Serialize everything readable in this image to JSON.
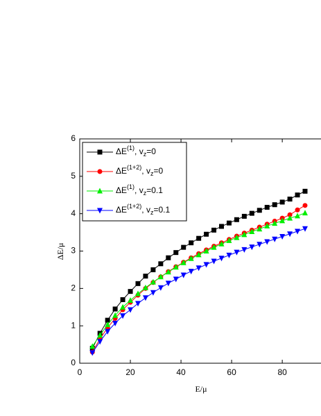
{
  "chart_data": {
    "type": "line",
    "x_label": "E/μ",
    "y_label": "ΔE/μ",
    "x": [
      5,
      8,
      11,
      14,
      17,
      20,
      23,
      26,
      29,
      32,
      35,
      38,
      41,
      44,
      47,
      50,
      53,
      56,
      59,
      62,
      65,
      68,
      71,
      74,
      77,
      80,
      83,
      86,
      89
    ],
    "series": [
      {
        "name": "ΔE(1), vz=0",
        "color": "#000000",
        "marker": "square",
        "values": [
          0.4,
          0.8,
          1.15,
          1.45,
          1.7,
          1.92,
          2.13,
          2.33,
          2.5,
          2.66,
          2.82,
          2.96,
          3.1,
          3.22,
          3.34,
          3.45,
          3.56,
          3.66,
          3.75,
          3.84,
          3.93,
          4.01,
          4.09,
          4.17,
          4.24,
          4.31,
          4.39,
          4.5,
          4.6
        ]
      },
      {
        "name": "ΔE(1+2), vz=0",
        "color": "#ff0000",
        "marker": "circle",
        "values": [
          0.3,
          0.65,
          0.95,
          1.2,
          1.43,
          1.63,
          1.82,
          2.0,
          2.16,
          2.31,
          2.45,
          2.58,
          2.7,
          2.82,
          2.93,
          3.03,
          3.13,
          3.22,
          3.31,
          3.4,
          3.48,
          3.56,
          3.64,
          3.72,
          3.8,
          3.88,
          3.97,
          4.1,
          4.22
        ]
      },
      {
        "name": "ΔE(1), vz=0.1",
        "color": "#00ee00",
        "marker": "triangle-up",
        "values": [
          0.45,
          0.75,
          1.03,
          1.28,
          1.5,
          1.68,
          1.86,
          2.02,
          2.17,
          2.31,
          2.44,
          2.57,
          2.69,
          2.8,
          2.9,
          3.0,
          3.1,
          3.19,
          3.28,
          3.36,
          3.44,
          3.52,
          3.59,
          3.67,
          3.74,
          3.81,
          3.88,
          3.94,
          4.02
        ]
      },
      {
        "name": "ΔE(1+2), vz=0.1",
        "color": "#0000ff",
        "marker": "triangle-down",
        "values": [
          0.28,
          0.58,
          0.85,
          1.07,
          1.27,
          1.43,
          1.6,
          1.75,
          1.89,
          2.02,
          2.14,
          2.25,
          2.36,
          2.46,
          2.55,
          2.64,
          2.73,
          2.81,
          2.89,
          2.97,
          3.04,
          3.11,
          3.18,
          3.25,
          3.32,
          3.39,
          3.46,
          3.53,
          3.6
        ]
      }
    ],
    "xlim": [
      0,
      95.3
    ],
    "ylim": [
      0,
      6
    ],
    "xticks": [
      0,
      20,
      40,
      60,
      80
    ],
    "yticks": [
      0,
      1,
      2,
      3,
      4,
      5,
      6
    ],
    "legend": "upper-left"
  }
}
